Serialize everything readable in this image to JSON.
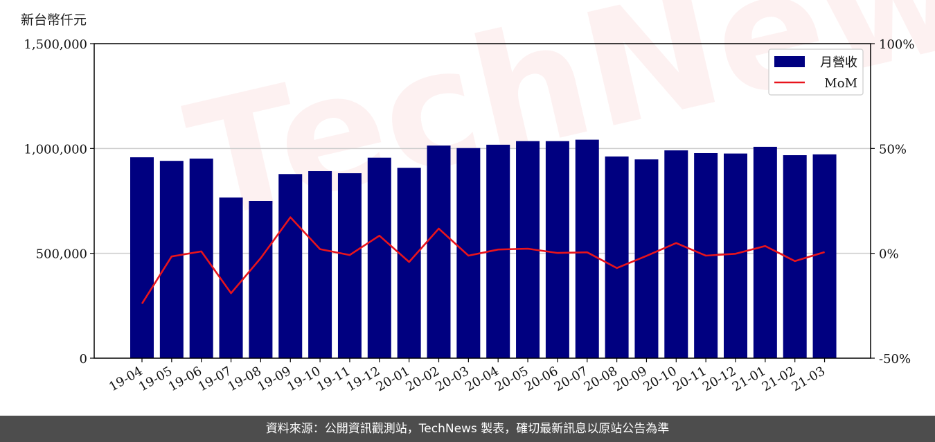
{
  "unit_label": "新台幣仟元",
  "watermark": "TechNews",
  "footer": "資料來源：公開資訊觀測站，TechNews 製表，確切最新訊息以原站公告為準",
  "colors": {
    "bar": "#000080",
    "line": "#e8141c",
    "grid": "#cccccc",
    "footer_bg": "#4d4d4d"
  },
  "chart_data": {
    "type": "bar",
    "categories": [
      "19-04",
      "19-05",
      "19-06",
      "19-07",
      "19-08",
      "19-09",
      "19-10",
      "19-11",
      "19-12",
      "20-01",
      "20-02",
      "20-03",
      "20-04",
      "20-05",
      "20-06",
      "20-07",
      "20-08",
      "20-09",
      "20-10",
      "20-11",
      "20-12",
      "21-01",
      "21-02",
      "21-03"
    ],
    "series": [
      {
        "name": "月營收",
        "type": "bar",
        "axis": "left",
        "values": [
          958000,
          941000,
          952000,
          766000,
          750000,
          878000,
          892000,
          882000,
          956000,
          908000,
          1014000,
          1002000,
          1018000,
          1035000,
          1035000,
          1042000,
          962000,
          948000,
          991000,
          978000,
          976000,
          1008000,
          968000,
          972000
        ]
      },
      {
        "name": "MoM",
        "type": "line",
        "axis": "right",
        "values": [
          -24.0,
          -1.5,
          0.9,
          -19.0,
          -2.3,
          17.2,
          2.0,
          -0.8,
          8.4,
          -4.1,
          11.8,
          -1.1,
          1.8,
          2.2,
          0.2,
          0.5,
          -7.0,
          -1.2,
          4.9,
          -1.1,
          -0.2,
          3.5,
          -3.7,
          0.6
        ]
      }
    ],
    "y_left": {
      "ylim": [
        0,
        1500000
      ],
      "ticks": [
        0,
        500000,
        1000000,
        1500000
      ],
      "tick_labels": [
        "0",
        "500,000",
        "1,000,000",
        "1,500,000"
      ]
    },
    "y_right": {
      "ylim": [
        -50,
        100
      ],
      "ticks": [
        -50,
        0,
        50,
        100
      ],
      "tick_labels": [
        "-50%",
        "0%",
        "50%",
        "100%"
      ]
    },
    "grid": "horizontal",
    "legend": {
      "position": "top-right",
      "entries": [
        "月營收",
        "MoM"
      ]
    }
  }
}
